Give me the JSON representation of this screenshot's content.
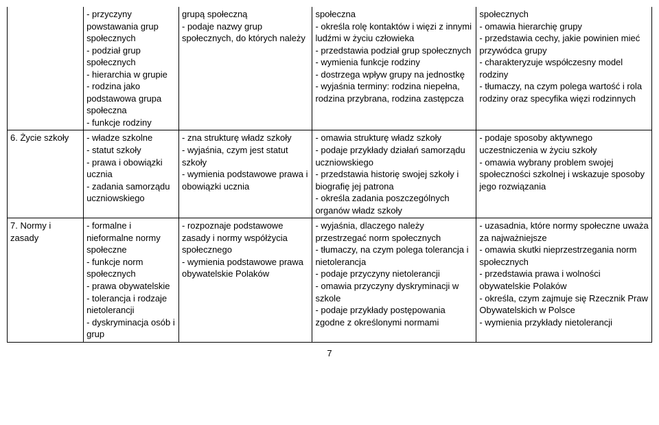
{
  "page_number": "7",
  "rows": [
    {
      "topic": "",
      "col2": "- przyczyny powstawania grup społecznych\n- podział grup społecznych\n- hierarchia w grupie\n- rodzina jako podstawowa grupa społeczna\n- funkcje rodziny",
      "col3": "grupą społeczną\n- podaje nazwy grup społecznych, do których należy",
      "col4": "społeczna\n- określa rolę kontaktów i więzi z innymi ludźmi w życiu człowieka\n- przedstawia podział grup społecznych\n- wymienia funkcje rodziny\n- dostrzega wpływ grupy na jednostkę\n- wyjaśnia terminy: rodzina niepełna, rodzina przybrana, rodzina zastępcza",
      "col5": "społecznych\n- omawia hierarchię grupy\n- przedstawia cechy, jakie powinien mieć przywódca grupy\n- charakteryzuje współczesny model rodziny\n- tłumaczy, na czym polega wartość i rola rodziny oraz specyfika więzi rodzinnych"
    },
    {
      "topic": "6. Życie szkoły",
      "col2": "- władze szkolne\n- statut szkoły\n- prawa i obowiązki ucznia\n- zadania samorządu uczniowskiego",
      "col3": "- zna strukturę władz szkoły\n- wyjaśnia, czym jest statut szkoły\n- wymienia podstawowe prawa i obowiązki ucznia",
      "col4": "- omawia strukturę władz szkoły\n- podaje przykłady działań samorządu uczniowskiego\n- przedstawia historię swojej szkoły i biografię jej patrona\n- określa zadania poszczególnych organów władz szkoły",
      "col5": "- podaje sposoby aktywnego uczestniczenia w życiu szkoły\n- omawia wybrany problem swojej społeczności szkolnej i wskazuje sposoby jego rozwiązania"
    },
    {
      "topic": "7. Normy i zasady",
      "col2": "- formalne i nieformalne normy społeczne\n- funkcje norm społecznych\n- prawa obywatelskie\n- tolerancja i rodzaje nietolerancji\n- dyskryminacja osób i grup",
      "col3": "- rozpoznaje podstawowe zasady i normy współżycia społecznego\n- wymienia podstawowe prawa obywatelskie Polaków",
      "col4": "- wyjaśnia, dlaczego należy przestrzegać norm społecznych\n- tłumaczy, na czym polega tolerancja i nietolerancja\n- podaje przyczyny nietolerancji\n- omawia przyczyny dyskryminacji w szkole\n- podaje przykłady postępowania zgodne z określonymi normami",
      "col5": "- uzasadnia, które normy społeczne uważa za najważniejsze\n- omawia skutki nieprzestrzegania norm społecznych\n- przedstawia prawa i wolności obywatelskie Polaków\n- określa, czym zajmuje się Rzecznik Praw Obywatelskich w Polsce\n- wymienia przykłady nietolerancji"
    }
  ]
}
